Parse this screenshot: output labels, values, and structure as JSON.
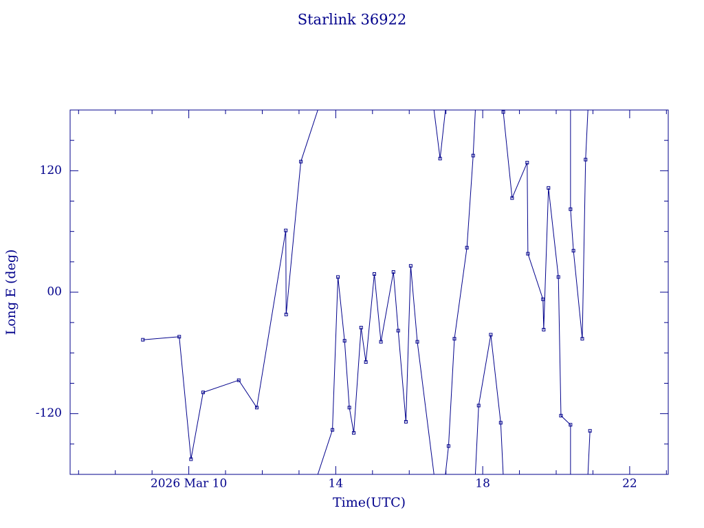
{
  "chart_data": {
    "type": "line",
    "title": "Starlink 36922",
    "xlabel": "Time(UTC)",
    "ylabel": "Long E (deg)",
    "color": "#00008b",
    "xlim": [
      6.77,
      23.05
    ],
    "ylim": [
      -180,
      180
    ],
    "xticks": [
      {
        "value": 10,
        "label": "2026 Mar 10"
      },
      14,
      18,
      22
    ],
    "yticks": [
      -120,
      {
        "value": 0,
        "label": "00"
      },
      120
    ],
    "x_minor_ticks": [
      7,
      8,
      9,
      11,
      12,
      13,
      15,
      16,
      17,
      19,
      20,
      21,
      23
    ],
    "y_minor_ticks": [
      -150,
      -90,
      -60,
      -30,
      30,
      60,
      90,
      150
    ],
    "x": [
      8.75,
      9.74,
      10.06,
      10.39,
      11.36,
      11.85,
      12.64,
      12.65,
      13.05,
      13.91,
      14.06,
      14.24,
      14.37,
      14.49,
      14.69,
      14.82,
      15.05,
      15.23,
      15.57,
      15.7,
      15.91,
      16.04,
      16.22,
      16.84,
      17.07,
      17.23,
      17.57,
      17.74,
      17.89,
      18.22,
      18.49,
      18.56,
      18.8,
      19.21,
      19.23,
      19.64,
      19.66,
      19.79,
      20.06,
      20.13,
      20.39,
      20.39,
      20.47,
      20.71,
      20.8,
      20.92
    ],
    "values": [
      -47,
      -44,
      -165,
      -99,
      -87,
      -114,
      61,
      -22,
      129,
      -136,
      15,
      -48,
      -114,
      -139,
      -35,
      -69,
      18,
      -49,
      20,
      -38,
      -128,
      26,
      -49,
      132,
      -152,
      -46,
      44,
      135,
      -112,
      -42,
      -129,
      178,
      93,
      128,
      38,
      -7,
      -37,
      103,
      15,
      -122,
      -131,
      82,
      41,
      -46,
      131,
      -137
    ]
  }
}
